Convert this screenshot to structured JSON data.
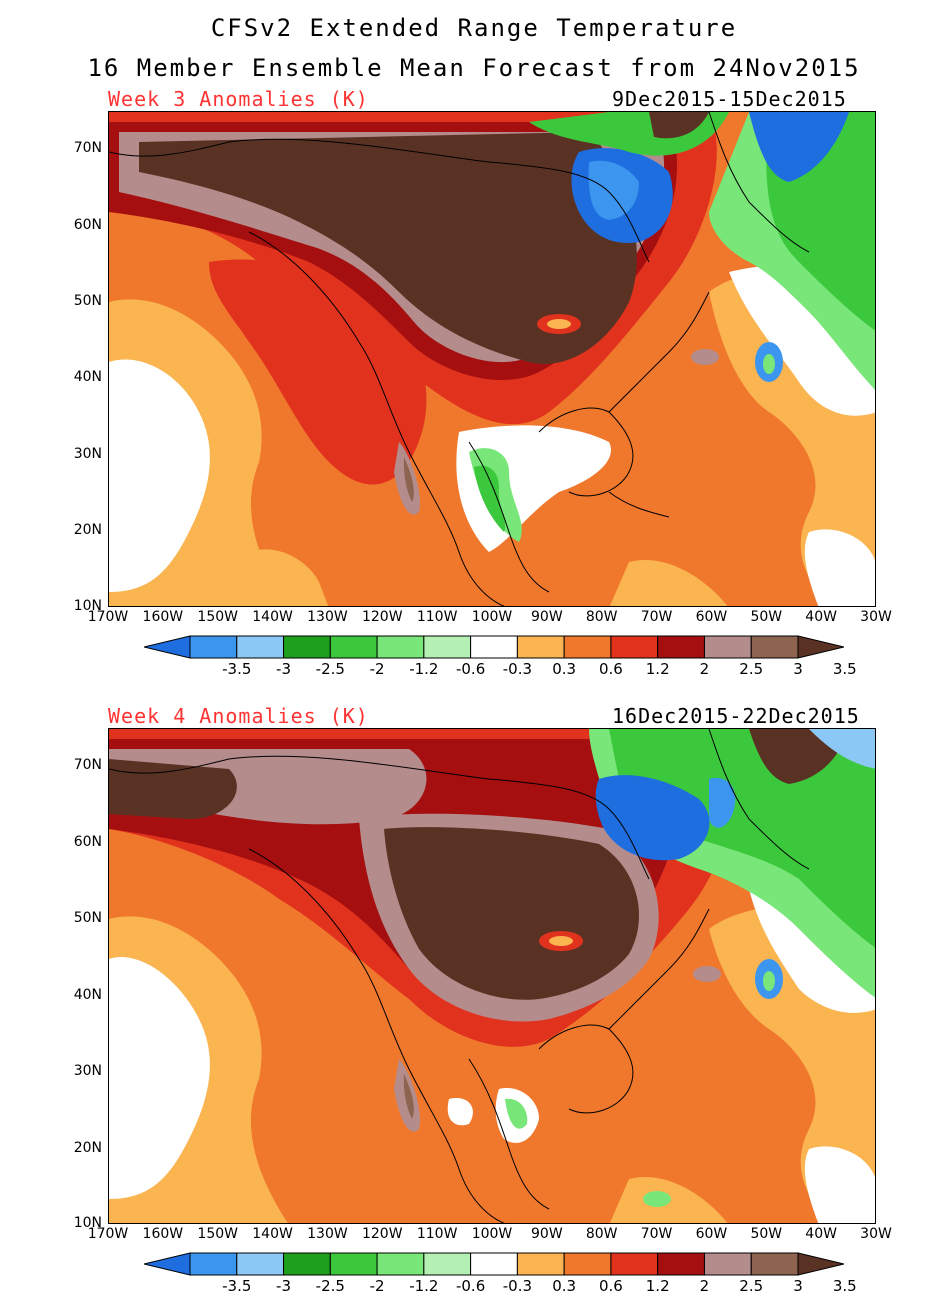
{
  "title_line1": "CFSv2 Extended Range Temperature",
  "title_line2": "16 Member Ensemble Mean Forecast from 24Nov2015",
  "panels": [
    {
      "label": "Week 3 Anomalies (K)",
      "dates": "9Dec2015-15Dec2015"
    },
    {
      "label": "Week 4 Anomalies (K)",
      "dates": "16Dec2015-22Dec2015"
    }
  ],
  "lat_labels": [
    "70N",
    "60N",
    "50N",
    "40N",
    "30N",
    "20N",
    "10N"
  ],
  "lon_labels": [
    "170W",
    "160W",
    "150W",
    "140W",
    "130W",
    "120W",
    "110W",
    "100W",
    "90W",
    "80W",
    "70W",
    "60W",
    "50W",
    "40W",
    "30W"
  ],
  "colorbar_labels": [
    "-3.5",
    "-3",
    "-2.5",
    "-2",
    "-1.2",
    "-0.6",
    "-0.3",
    "0.3",
    "0.6",
    "1.2",
    "2",
    "2.5",
    "3",
    "3.5"
  ],
  "colorbar_colors": [
    "#1e6ee0",
    "#3c96f0",
    "#8cc8f5",
    "#1ea01e",
    "#3cc83c",
    "#78e678",
    "#b4f0b4",
    "#ffffff",
    "#fab450",
    "#f0782d",
    "#e1321e",
    "#a50f0f",
    "#b48c8c",
    "#8c6450",
    "#5a3223"
  ]
}
